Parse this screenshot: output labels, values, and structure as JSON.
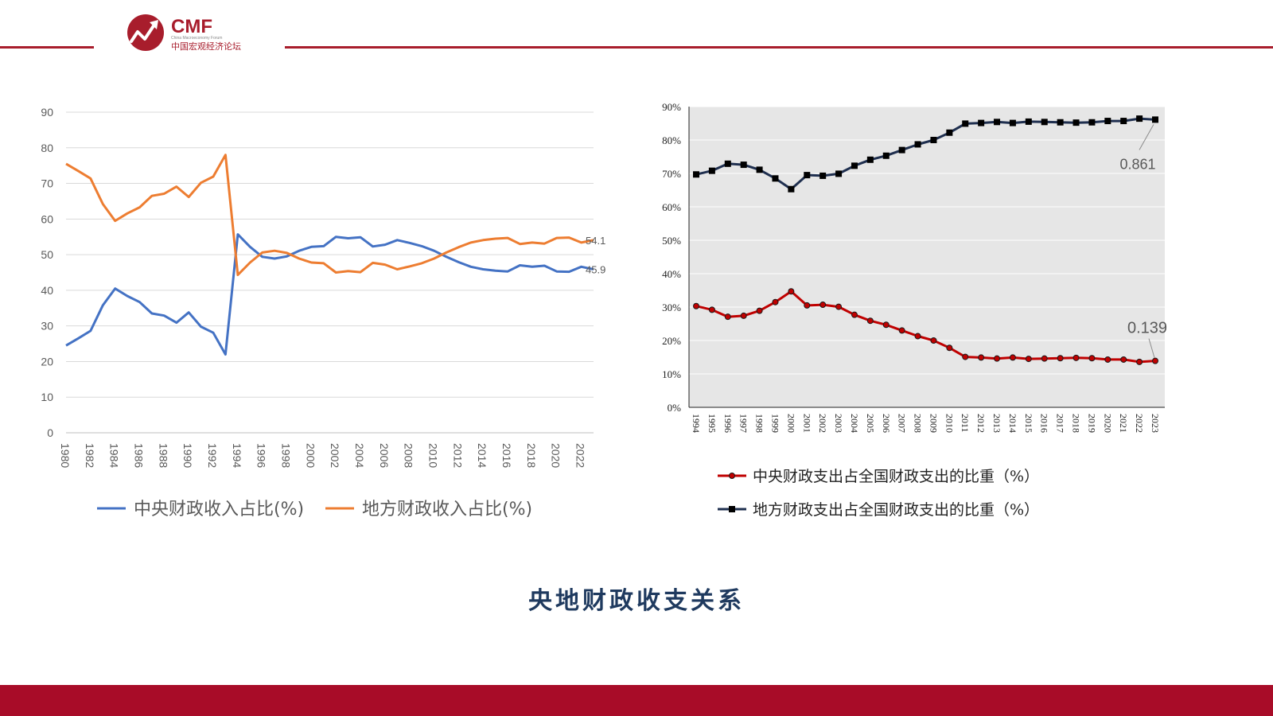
{
  "header": {
    "logo_text": "CMF",
    "logo_subtitle": "China Macroeconomy Forum",
    "logo_chinese": "中国宏观经济论坛",
    "brand_color": "#a81d2c"
  },
  "slide_title": "央地财政收支关系",
  "colors": {
    "central_revenue": "#4472c4",
    "local_revenue": "#ed7d31",
    "central_expenditure": "#c00000",
    "local_expenditure": "#1f2f4f",
    "right_plot_bg": "#e6e6e6"
  },
  "chart_data": [
    {
      "type": "line",
      "title": "",
      "xlabel": "",
      "ylabel": "",
      "ylim": [
        0,
        90
      ],
      "yticks": [
        "0",
        "10",
        "20",
        "30",
        "40",
        "50",
        "60",
        "70",
        "80",
        "90"
      ],
      "xtick_labels": [
        "1980",
        "1982",
        "1984",
        "1986",
        "1988",
        "1990",
        "1992",
        "1994",
        "1996",
        "1998",
        "2000",
        "2002",
        "2004",
        "2006",
        "2008",
        "2010",
        "2012",
        "2014",
        "2016",
        "2018",
        "2020",
        "2022"
      ],
      "grid": true,
      "legend_position": "bottom",
      "x": [
        1980,
        1981,
        1982,
        1983,
        1984,
        1985,
        1986,
        1987,
        1988,
        1989,
        1990,
        1991,
        1992,
        1993,
        1994,
        1995,
        1996,
        1997,
        1998,
        1999,
        2000,
        2001,
        2002,
        2003,
        2004,
        2005,
        2006,
        2007,
        2008,
        2009,
        2010,
        2011,
        2012,
        2013,
        2014,
        2015,
        2016,
        2017,
        2018,
        2019,
        2020,
        2021,
        2022,
        2023
      ],
      "series": [
        {
          "name": "中央财政收入占比(%)",
          "values": [
            24.5,
            26.5,
            28.6,
            35.8,
            40.5,
            38.4,
            36.7,
            33.5,
            32.9,
            30.9,
            33.8,
            29.8,
            28.1,
            22.0,
            55.7,
            52.2,
            49.4,
            48.9,
            49.5,
            51.1,
            52.2,
            52.4,
            55.0,
            54.6,
            54.9,
            52.3,
            52.8,
            54.1,
            53.3,
            52.4,
            51.1,
            49.4,
            47.9,
            46.6,
            45.9,
            45.5,
            45.3,
            47.0,
            46.6,
            46.9,
            45.3,
            45.2,
            46.6,
            45.9
          ]
        },
        {
          "name": "地方财政收入占比(%)",
          "values": [
            75.5,
            73.5,
            71.4,
            64.2,
            59.5,
            61.6,
            63.3,
            66.5,
            67.1,
            69.1,
            66.2,
            70.2,
            71.9,
            78.0,
            44.3,
            47.8,
            50.6,
            51.1,
            50.5,
            48.9,
            47.8,
            47.6,
            45.0,
            45.4,
            45.1,
            47.7,
            47.2,
            45.9,
            46.7,
            47.6,
            48.9,
            50.6,
            52.1,
            53.4,
            54.1,
            54.5,
            54.7,
            53.0,
            53.4,
            53.1,
            54.7,
            54.8,
            53.4,
            54.1
          ]
        }
      ],
      "annotations": [
        {
          "text": "54.1",
          "x": 2023,
          "y": 54.1
        },
        {
          "text": "45.9",
          "x": 2023,
          "y": 45.9
        }
      ]
    },
    {
      "type": "line",
      "title": "",
      "xlabel": "",
      "ylabel": "",
      "ylim": [
        0,
        90
      ],
      "yticks": [
        "0%",
        "10%",
        "20%",
        "30%",
        "40%",
        "50%",
        "60%",
        "70%",
        "80%",
        "90%"
      ],
      "x": [
        "1994",
        "1995",
        "1996",
        "1997",
        "1998",
        "1999",
        "2000",
        "2001",
        "2002",
        "2003",
        "2004",
        "2005",
        "2006",
        "2007",
        "2008",
        "2009",
        "2010",
        "2011",
        "2012",
        "2013",
        "2014",
        "2015",
        "2016",
        "2017",
        "2018",
        "2019",
        "2020",
        "2021",
        "2022",
        "2023"
      ],
      "grid": true,
      "legend_position": "bottom",
      "series": [
        {
          "name": "中央财政支出占全国财政支出的比重（%）",
          "marker": "circle",
          "values": [
            30.3,
            29.2,
            27.1,
            27.4,
            28.9,
            31.5,
            34.7,
            30.5,
            30.7,
            30.1,
            27.7,
            25.9,
            24.7,
            23.0,
            21.3,
            20.0,
            17.8,
            15.1,
            14.9,
            14.6,
            14.9,
            14.5,
            14.6,
            14.7,
            14.8,
            14.7,
            14.3,
            14.3,
            13.6,
            13.9
          ]
        },
        {
          "name": "地方财政支出占全国财政支出的比重（%）",
          "marker": "square",
          "values": [
            69.7,
            70.8,
            72.9,
            72.6,
            71.1,
            68.5,
            65.3,
            69.5,
            69.3,
            69.9,
            72.3,
            74.1,
            75.3,
            77.0,
            78.7,
            80.0,
            82.2,
            84.9,
            85.1,
            85.4,
            85.1,
            85.5,
            85.4,
            85.3,
            85.2,
            85.3,
            85.7,
            85.7,
            86.4,
            86.1
          ]
        }
      ],
      "annotations": [
        {
          "text": "0.861",
          "x": "2023",
          "y": 86.1
        },
        {
          "text": "0.139",
          "x": "2023",
          "y": 13.9
        }
      ]
    }
  ]
}
